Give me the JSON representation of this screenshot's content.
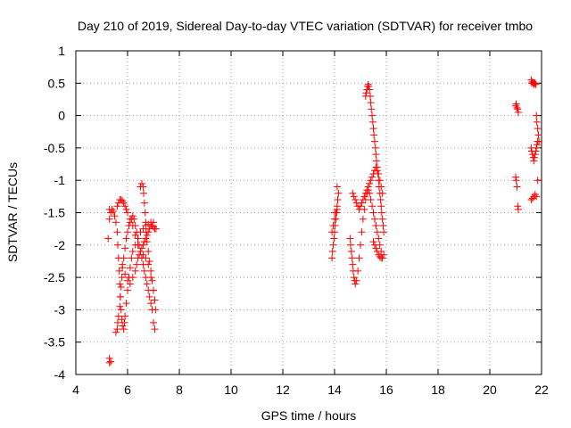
{
  "chart_data": {
    "type": "scatter",
    "title": "Day 210 of 2019, Sidereal Day-to-day VTEC variation (SDTVAR) for receiver tmbo",
    "xlabel": "GPS time / hours",
    "ylabel": "SDTVAR / TECUs",
    "xlim": [
      4,
      22
    ],
    "ylim": [
      -4,
      1
    ],
    "xticks": [
      4,
      6,
      8,
      10,
      12,
      14,
      16,
      18,
      20,
      22
    ],
    "yticks": [
      -4,
      -3.5,
      -3,
      -2.5,
      -2,
      -1.5,
      -1,
      -0.5,
      0,
      0.5,
      1
    ],
    "ytick_labels": [
      "-4",
      "-3.5",
      "-3",
      "-2.5",
      "-2",
      "-1.5",
      "-1",
      "-0.5",
      "0",
      "0.5",
      "1"
    ],
    "marker": "plus",
    "color": "#ff0000",
    "series": [
      {
        "name": "tmbo",
        "x": [
          5.25,
          5.3,
          5.3,
          5.35,
          5.4,
          5.45,
          5.5,
          5.55,
          5.6,
          5.62,
          5.65,
          5.68,
          5.7,
          5.72,
          5.75,
          5.78,
          5.8,
          5.85,
          5.88,
          5.9,
          5.95,
          6.0,
          6.05,
          6.1,
          6.15,
          6.2,
          6.3,
          6.4,
          6.5,
          6.6,
          6.7,
          6.8,
          6.9,
          7.0,
          5.55,
          5.6,
          5.62,
          5.65,
          5.7,
          5.72,
          5.75,
          5.78,
          5.8,
          5.85,
          5.9,
          5.95,
          6.0,
          6.05,
          6.1,
          6.15,
          6.2,
          6.25,
          6.3,
          6.35,
          6.4,
          6.45,
          6.5,
          6.55,
          6.6,
          6.65,
          6.7,
          6.75,
          6.8,
          6.85,
          6.9,
          6.95,
          7.0,
          7.05,
          5.6,
          5.65,
          5.7,
          5.75,
          5.8,
          5.85,
          5.9,
          5.95,
          6.0,
          6.1,
          6.2,
          6.3,
          6.4,
          6.5,
          6.6,
          6.7,
          6.8,
          6.9,
          7.0,
          7.05,
          6.5,
          6.55,
          6.6,
          6.62,
          6.65,
          6.68,
          6.7,
          6.72,
          6.75,
          6.8,
          6.85,
          6.9,
          6.95,
          7.0,
          7.05,
          7.08,
          5.8,
          5.9,
          6.0,
          6.1,
          6.2,
          6.3,
          6.35,
          6.4,
          6.45,
          6.5,
          6.55,
          6.6,
          6.65,
          6.7,
          6.75,
          6.8,
          6.85,
          6.9,
          6.95,
          7.0,
          7.05,
          7.1,
          5.3,
          5.35,
          5.3,
          13.9,
          13.92,
          13.95,
          13.98,
          14.0,
          14.02,
          14.05,
          14.08,
          14.1,
          14.12,
          14.15,
          14.1,
          14.05,
          14.0,
          13.95,
          13.9,
          14.0,
          14.1,
          14.6,
          14.62,
          14.65,
          14.68,
          14.7,
          14.72,
          14.75,
          14.78,
          14.8,
          14.85,
          14.9,
          14.95,
          15.0,
          15.05,
          15.1,
          15.15,
          15.2,
          15.25,
          15.3,
          15.35,
          15.4,
          15.45,
          15.5,
          15.55,
          15.6,
          15.65,
          15.7,
          15.75,
          15.8,
          14.7,
          14.75,
          14.8,
          14.85,
          14.9,
          14.95,
          15.0,
          15.05,
          15.1,
          15.15,
          15.2,
          15.25,
          15.3,
          15.35,
          15.4,
          15.45,
          15.5,
          15.55,
          15.6,
          15.65,
          15.7,
          15.75,
          15.8,
          15.85,
          15.2,
          15.22,
          15.25,
          15.28,
          15.3,
          15.32,
          15.35,
          15.38,
          15.4,
          15.42,
          15.45,
          15.48,
          15.5,
          15.52,
          15.55,
          15.58,
          15.6,
          15.62,
          15.65,
          15.68,
          15.7,
          15.72,
          15.75,
          15.78,
          15.8,
          15.82,
          15.85,
          15.88,
          15.9,
          15.5,
          15.55,
          15.6,
          15.65,
          15.7,
          15.75,
          15.8,
          15.85,
          15.9,
          21.0,
          21.02,
          21.05,
          21.08,
          21.1,
          21.0,
          21.02,
          21.05,
          21.08,
          21.1,
          21.6,
          21.62,
          21.65,
          21.68,
          21.7,
          21.72,
          21.75,
          21.78,
          21.8,
          21.82,
          21.85,
          21.88,
          21.9,
          21.6,
          21.62,
          21.65,
          21.68,
          21.7,
          21.72,
          21.75,
          21.78,
          21.8,
          21.82,
          21.85,
          21.6,
          21.65,
          21.7,
          21.75,
          21.8,
          21.85
        ],
        "y": [
          -1.9,
          -1.45,
          -1.6,
          -1.5,
          -1.45,
          -1.48,
          -1.55,
          -1.65,
          -1.8,
          -2.0,
          -2.2,
          -2.4,
          -2.6,
          -2.8,
          -3.0,
          -3.15,
          -3.25,
          -3.3,
          -3.2,
          -3.1,
          -2.9,
          -2.7,
          -2.5,
          -2.35,
          -2.2,
          -2.1,
          -2.0,
          -1.9,
          -1.8,
          -1.75,
          -1.7,
          -1.68,
          -1.65,
          -1.65,
          -3.35,
          -3.3,
          -3.2,
          -3.1,
          -2.95,
          -2.8,
          -2.65,
          -2.5,
          -2.35,
          -2.2,
          -2.05,
          -1.9,
          -1.8,
          -1.7,
          -1.65,
          -1.6,
          -1.55,
          -1.6,
          -1.7,
          -1.8,
          -1.9,
          -2.0,
          -2.1,
          -2.2,
          -2.3,
          -2.4,
          -2.5,
          -2.6,
          -2.7,
          -2.8,
          -2.9,
          -3.0,
          -3.2,
          -3.3,
          -1.4,
          -1.35,
          -1.3,
          -1.3,
          -1.32,
          -1.35,
          -1.4,
          -1.45,
          -1.5,
          -1.6,
          -1.7,
          -1.85,
          -2.0,
          -2.1,
          -2.15,
          -2.2,
          -2.3,
          -2.5,
          -2.7,
          -2.85,
          -1.1,
          -1.05,
          -1.1,
          -1.2,
          -1.35,
          -1.5,
          -1.65,
          -1.8,
          -1.95,
          -2.1,
          -2.25,
          -2.4,
          -2.55,
          -2.7,
          -2.85,
          -3.0,
          -2.3,
          -2.45,
          -2.55,
          -2.6,
          -2.5,
          -2.4,
          -2.3,
          -2.2,
          -2.15,
          -2.1,
          -2.05,
          -2.0,
          -1.95,
          -1.9,
          -1.85,
          -1.8,
          -1.75,
          -1.7,
          -1.7,
          -1.72,
          -1.75,
          -1.75,
          -3.75,
          -3.8,
          -3.82,
          -2.2,
          -2.1,
          -2.0,
          -1.9,
          -1.8,
          -1.7,
          -1.6,
          -1.5,
          -1.4,
          -1.3,
          -1.2,
          -1.1,
          -1.5,
          -1.6,
          -1.7,
          -1.8,
          -1.5,
          -1.45,
          -1.9,
          -2.0,
          -2.1,
          -2.2,
          -2.3,
          -2.4,
          -2.5,
          -2.55,
          -2.6,
          -2.55,
          -2.4,
          -2.2,
          -2.0,
          -1.8,
          -1.6,
          -1.45,
          -1.3,
          -1.2,
          -1.15,
          -1.2,
          -1.3,
          -1.4,
          -1.5,
          -1.6,
          -1.7,
          -1.8,
          -1.9,
          -2.0,
          -2.1,
          -1.2,
          -1.25,
          -1.3,
          -1.35,
          -1.4,
          -1.45,
          -1.4,
          -1.35,
          -1.3,
          -1.25,
          -1.2,
          -1.15,
          -1.1,
          -1.05,
          -1.0,
          -0.95,
          -0.9,
          -0.85,
          -0.8,
          -0.85,
          -0.9,
          -1.0,
          -1.1,
          -1.2,
          0.3,
          0.35,
          0.4,
          0.45,
          0.48,
          0.45,
          0.4,
          0.3,
          0.2,
          0.1,
          0.0,
          -0.1,
          -0.2,
          -0.3,
          -0.4,
          -0.5,
          -0.6,
          -0.7,
          -0.8,
          -0.9,
          -1.0,
          -1.1,
          -1.2,
          -1.3,
          -1.4,
          -1.5,
          -1.6,
          -1.7,
          -1.8,
          -1.95,
          -2.0,
          -2.05,
          -2.1,
          -2.15,
          -2.18,
          -2.2,
          -2.2,
          -2.15,
          0.15,
          0.18,
          0.12,
          0.1,
          0.05,
          -0.95,
          -1.0,
          -1.1,
          -1.4,
          -1.45,
          0.55,
          0.5,
          0.52,
          0.5,
          0.48,
          0.5,
          0.5,
          0.48,
          0.0,
          -0.1,
          -0.2,
          -0.3,
          -0.4,
          -0.5,
          -0.55,
          -0.6,
          -0.65,
          -0.7,
          -0.65,
          -0.6,
          -0.55,
          -0.5,
          -0.45,
          -0.4,
          -1.3,
          -1.28,
          -1.25,
          -1.22,
          -1.25,
          -1.0
        ]
      }
    ]
  }
}
